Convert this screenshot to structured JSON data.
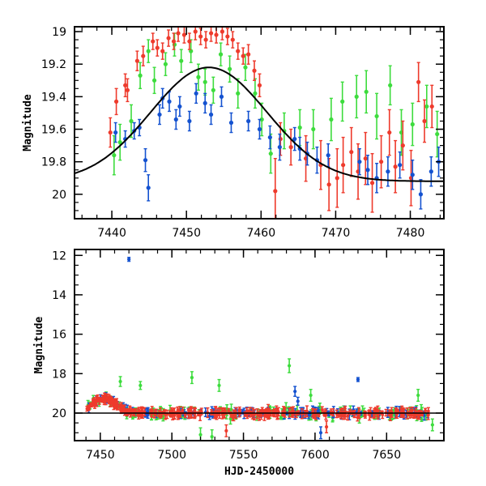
{
  "chart_data": [
    {
      "type": "scatter",
      "panel": "top",
      "title": "",
      "xlabel": "",
      "ylabel": "Magnitude",
      "xlim": [
        7435,
        7484.5
      ],
      "ylim": [
        20.15,
        18.97
      ],
      "y_inverted": true,
      "xticks": [
        7440,
        7450,
        7460,
        7470,
        7480
      ],
      "yticks": [
        19,
        19.2,
        19.4,
        19.6,
        19.8,
        20
      ],
      "colors": {
        "red": "#ee3a2c",
        "green": "#3ddc3d",
        "blue": "#1452d0",
        "model": "#000000"
      },
      "series": [
        {
          "color": "red",
          "points": [
            [
              7439.8,
              19.62,
              0.09
            ],
            [
              7440.6,
              19.43,
              0.08
            ],
            [
              7441.8,
              19.33,
              0.07
            ],
            [
              7442.1,
              19.36,
              0.07
            ],
            [
              7443.4,
              19.18,
              0.06
            ],
            [
              7444.2,
              19.15,
              0.06
            ],
            [
              7445.5,
              19.06,
              0.05
            ],
            [
              7446.1,
              19.1,
              0.05
            ],
            [
              7446.8,
              19.12,
              0.05
            ],
            [
              7447.6,
              19.04,
              0.05
            ],
            [
              7448.3,
              19.06,
              0.05
            ],
            [
              7448.9,
              19.01,
              0.05
            ],
            [
              7449.7,
              19.02,
              0.05
            ],
            [
              7450.4,
              19.06,
              0.05
            ],
            [
              7451.2,
              19.0,
              0.05
            ],
            [
              7451.9,
              19.03,
              0.05
            ],
            [
              7452.6,
              19.05,
              0.05
            ],
            [
              7453.3,
              19.01,
              0.05
            ],
            [
              7454.0,
              19.02,
              0.05
            ],
            [
              7454.8,
              19.0,
              0.05
            ],
            [
              7455.5,
              19.03,
              0.05
            ],
            [
              7456.2,
              19.05,
              0.05
            ],
            [
              7456.9,
              19.12,
              0.05
            ],
            [
              7457.6,
              19.15,
              0.05
            ],
            [
              7458.3,
              19.14,
              0.06
            ],
            [
              7459.1,
              19.24,
              0.06
            ],
            [
              7459.8,
              19.33,
              0.07
            ],
            [
              7461.9,
              19.98,
              0.2
            ],
            [
              7462.6,
              19.66,
              0.1
            ],
            [
              7464.0,
              19.71,
              0.11
            ],
            [
              7466.0,
              19.78,
              0.14
            ],
            [
              7468.0,
              19.82,
              0.15
            ],
            [
              7469.1,
              19.94,
              0.16
            ],
            [
              7470.2,
              19.9,
              0.18
            ],
            [
              7471.0,
              19.82,
              0.17
            ],
            [
              7472.1,
              19.74,
              0.15
            ],
            [
              7473.0,
              19.86,
              0.17
            ],
            [
              7474.0,
              19.78,
              0.16
            ],
            [
              7474.9,
              19.93,
              0.18
            ],
            [
              7476.1,
              19.8,
              0.16
            ],
            [
              7477.2,
              19.62,
              0.14
            ],
            [
              7478.0,
              19.83,
              0.16
            ],
            [
              7479.0,
              19.7,
              0.15
            ],
            [
              7480.1,
              19.9,
              0.17
            ],
            [
              7481.1,
              19.31,
              0.12
            ],
            [
              7481.9,
              19.55,
              0.13
            ],
            [
              7482.9,
              19.46,
              0.13
            ]
          ]
        },
        {
          "color": "green",
          "points": [
            [
              7440.3,
              19.76,
              0.12
            ],
            [
              7441.1,
              19.68,
              0.11
            ],
            [
              7442.6,
              19.55,
              0.1
            ],
            [
              7443.8,
              19.27,
              0.08
            ],
            [
              7444.9,
              19.12,
              0.07
            ],
            [
              7445.7,
              19.3,
              0.08
            ],
            [
              7447.2,
              19.2,
              0.07
            ],
            [
              7448.4,
              19.08,
              0.07
            ],
            [
              7449.3,
              19.18,
              0.07
            ],
            [
              7450.6,
              19.12,
              0.07
            ],
            [
              7451.6,
              19.28,
              0.08
            ],
            [
              7452.5,
              19.31,
              0.08
            ],
            [
              7453.6,
              19.36,
              0.08
            ],
            [
              7454.6,
              19.14,
              0.07
            ],
            [
              7455.8,
              19.23,
              0.08
            ],
            [
              7456.9,
              19.38,
              0.09
            ],
            [
              7457.9,
              19.22,
              0.08
            ],
            [
              7459.2,
              19.38,
              0.09
            ],
            [
              7460.1,
              19.54,
              0.1
            ],
            [
              7461.3,
              19.75,
              0.12
            ],
            [
              7463.1,
              19.61,
              0.11
            ],
            [
              7465.2,
              19.59,
              0.11
            ],
            [
              7467.0,
              19.6,
              0.12
            ],
            [
              7469.4,
              19.54,
              0.13
            ],
            [
              7470.9,
              19.43,
              0.12
            ],
            [
              7472.8,
              19.4,
              0.13
            ],
            [
              7474.1,
              19.37,
              0.13
            ],
            [
              7475.5,
              19.52,
              0.14
            ],
            [
              7477.3,
              19.33,
              0.12
            ],
            [
              7478.8,
              19.62,
              0.14
            ],
            [
              7480.3,
              19.57,
              0.13
            ],
            [
              7482.2,
              19.46,
              0.13
            ],
            [
              7483.6,
              19.63,
              0.14
            ]
          ]
        },
        {
          "color": "blue",
          "points": [
            [
              7440.5,
              19.62,
              0.06
            ],
            [
              7441.8,
              19.66,
              0.05
            ],
            [
              7443.0,
              19.61,
              0.05
            ],
            [
              7443.7,
              19.59,
              0.05
            ],
            [
              7444.5,
              19.79,
              0.07
            ],
            [
              7444.9,
              19.96,
              0.08
            ],
            [
              7446.4,
              19.51,
              0.06
            ],
            [
              7446.8,
              19.41,
              0.06
            ],
            [
              7447.7,
              19.43,
              0.06
            ],
            [
              7448.6,
              19.54,
              0.06
            ],
            [
              7449.1,
              19.46,
              0.06
            ],
            [
              7450.4,
              19.55,
              0.06
            ],
            [
              7451.3,
              19.38,
              0.06
            ],
            [
              7452.5,
              19.44,
              0.06
            ],
            [
              7453.3,
              19.51,
              0.06
            ],
            [
              7454.7,
              19.4,
              0.06
            ],
            [
              7456.0,
              19.56,
              0.06
            ],
            [
              7458.3,
              19.55,
              0.06
            ],
            [
              7459.8,
              19.6,
              0.06
            ],
            [
              7461.2,
              19.65,
              0.07
            ],
            [
              7462.5,
              19.71,
              0.08
            ],
            [
              7464.5,
              19.66,
              0.07
            ],
            [
              7465.2,
              19.72,
              0.07
            ],
            [
              7466.2,
              19.75,
              0.07
            ],
            [
              7467.5,
              19.79,
              0.08
            ],
            [
              7469.0,
              19.76,
              0.07
            ],
            [
              7473.2,
              19.8,
              0.08
            ],
            [
              7474.3,
              19.85,
              0.09
            ],
            [
              7475.5,
              19.9,
              0.09
            ],
            [
              7477.0,
              19.86,
              0.09
            ],
            [
              7478.6,
              19.82,
              0.08
            ],
            [
              7480.3,
              19.88,
              0.09
            ],
            [
              7481.4,
              20.0,
              0.09
            ],
            [
              7482.8,
              19.86,
              0.09
            ],
            [
              7483.8,
              19.8,
              0.09
            ]
          ]
        }
      ],
      "model_curve": {
        "x_peak": 7453,
        "baseline": 19.92,
        "peak": 19.22,
        "sigma": 7.8
      }
    },
    {
      "type": "scatter",
      "panel": "bottom",
      "title": "",
      "xlabel": "HJD-2450000",
      "ylabel": "Magnitude",
      "xlim": [
        7432,
        7690
      ],
      "ylim": [
        21.4,
        11.7
      ],
      "y_inverted": true,
      "xticks": [
        7450,
        7500,
        7550,
        7600,
        7650
      ],
      "yticks": [
        12,
        14,
        16,
        18,
        20
      ],
      "baseline_mag": 20.0,
      "outliers": [
        {
          "color": "blue",
          "x": 7470,
          "y": 12.2,
          "err": 0.1
        },
        {
          "color": "blue",
          "x": 7630,
          "y": 18.3,
          "err": 0.1
        },
        {
          "color": "green",
          "x": 7464,
          "y": 18.4,
          "err": 0.25
        },
        {
          "color": "green",
          "x": 7478,
          "y": 18.6,
          "err": 0.2
        },
        {
          "color": "green",
          "x": 7514,
          "y": 18.2,
          "err": 0.3
        },
        {
          "color": "green",
          "x": 7533,
          "y": 18.6,
          "err": 0.3
        },
        {
          "color": "green",
          "x": 7582,
          "y": 17.6,
          "err": 0.35
        },
        {
          "color": "green",
          "x": 7597,
          "y": 19.1,
          "err": 0.3
        },
        {
          "color": "green",
          "x": 7672,
          "y": 19.1,
          "err": 0.3
        },
        {
          "color": "green",
          "x": 7520,
          "y": 21.1,
          "err": 0.35
        },
        {
          "color": "green",
          "x": 7528,
          "y": 21.2,
          "err": 0.35
        },
        {
          "color": "green",
          "x": 7682,
          "y": 20.6,
          "err": 0.3
        },
        {
          "color": "blue",
          "x": 7586,
          "y": 18.9,
          "err": 0.25
        },
        {
          "color": "blue",
          "x": 7588,
          "y": 19.4,
          "err": 0.2
        },
        {
          "color": "blue",
          "x": 7604,
          "y": 21.0,
          "err": 0.3
        },
        {
          "color": "red",
          "x": 7538,
          "y": 20.9,
          "err": 0.3
        },
        {
          "color": "red",
          "x": 7608,
          "y": 20.7,
          "err": 0.3
        }
      ]
    }
  ]
}
